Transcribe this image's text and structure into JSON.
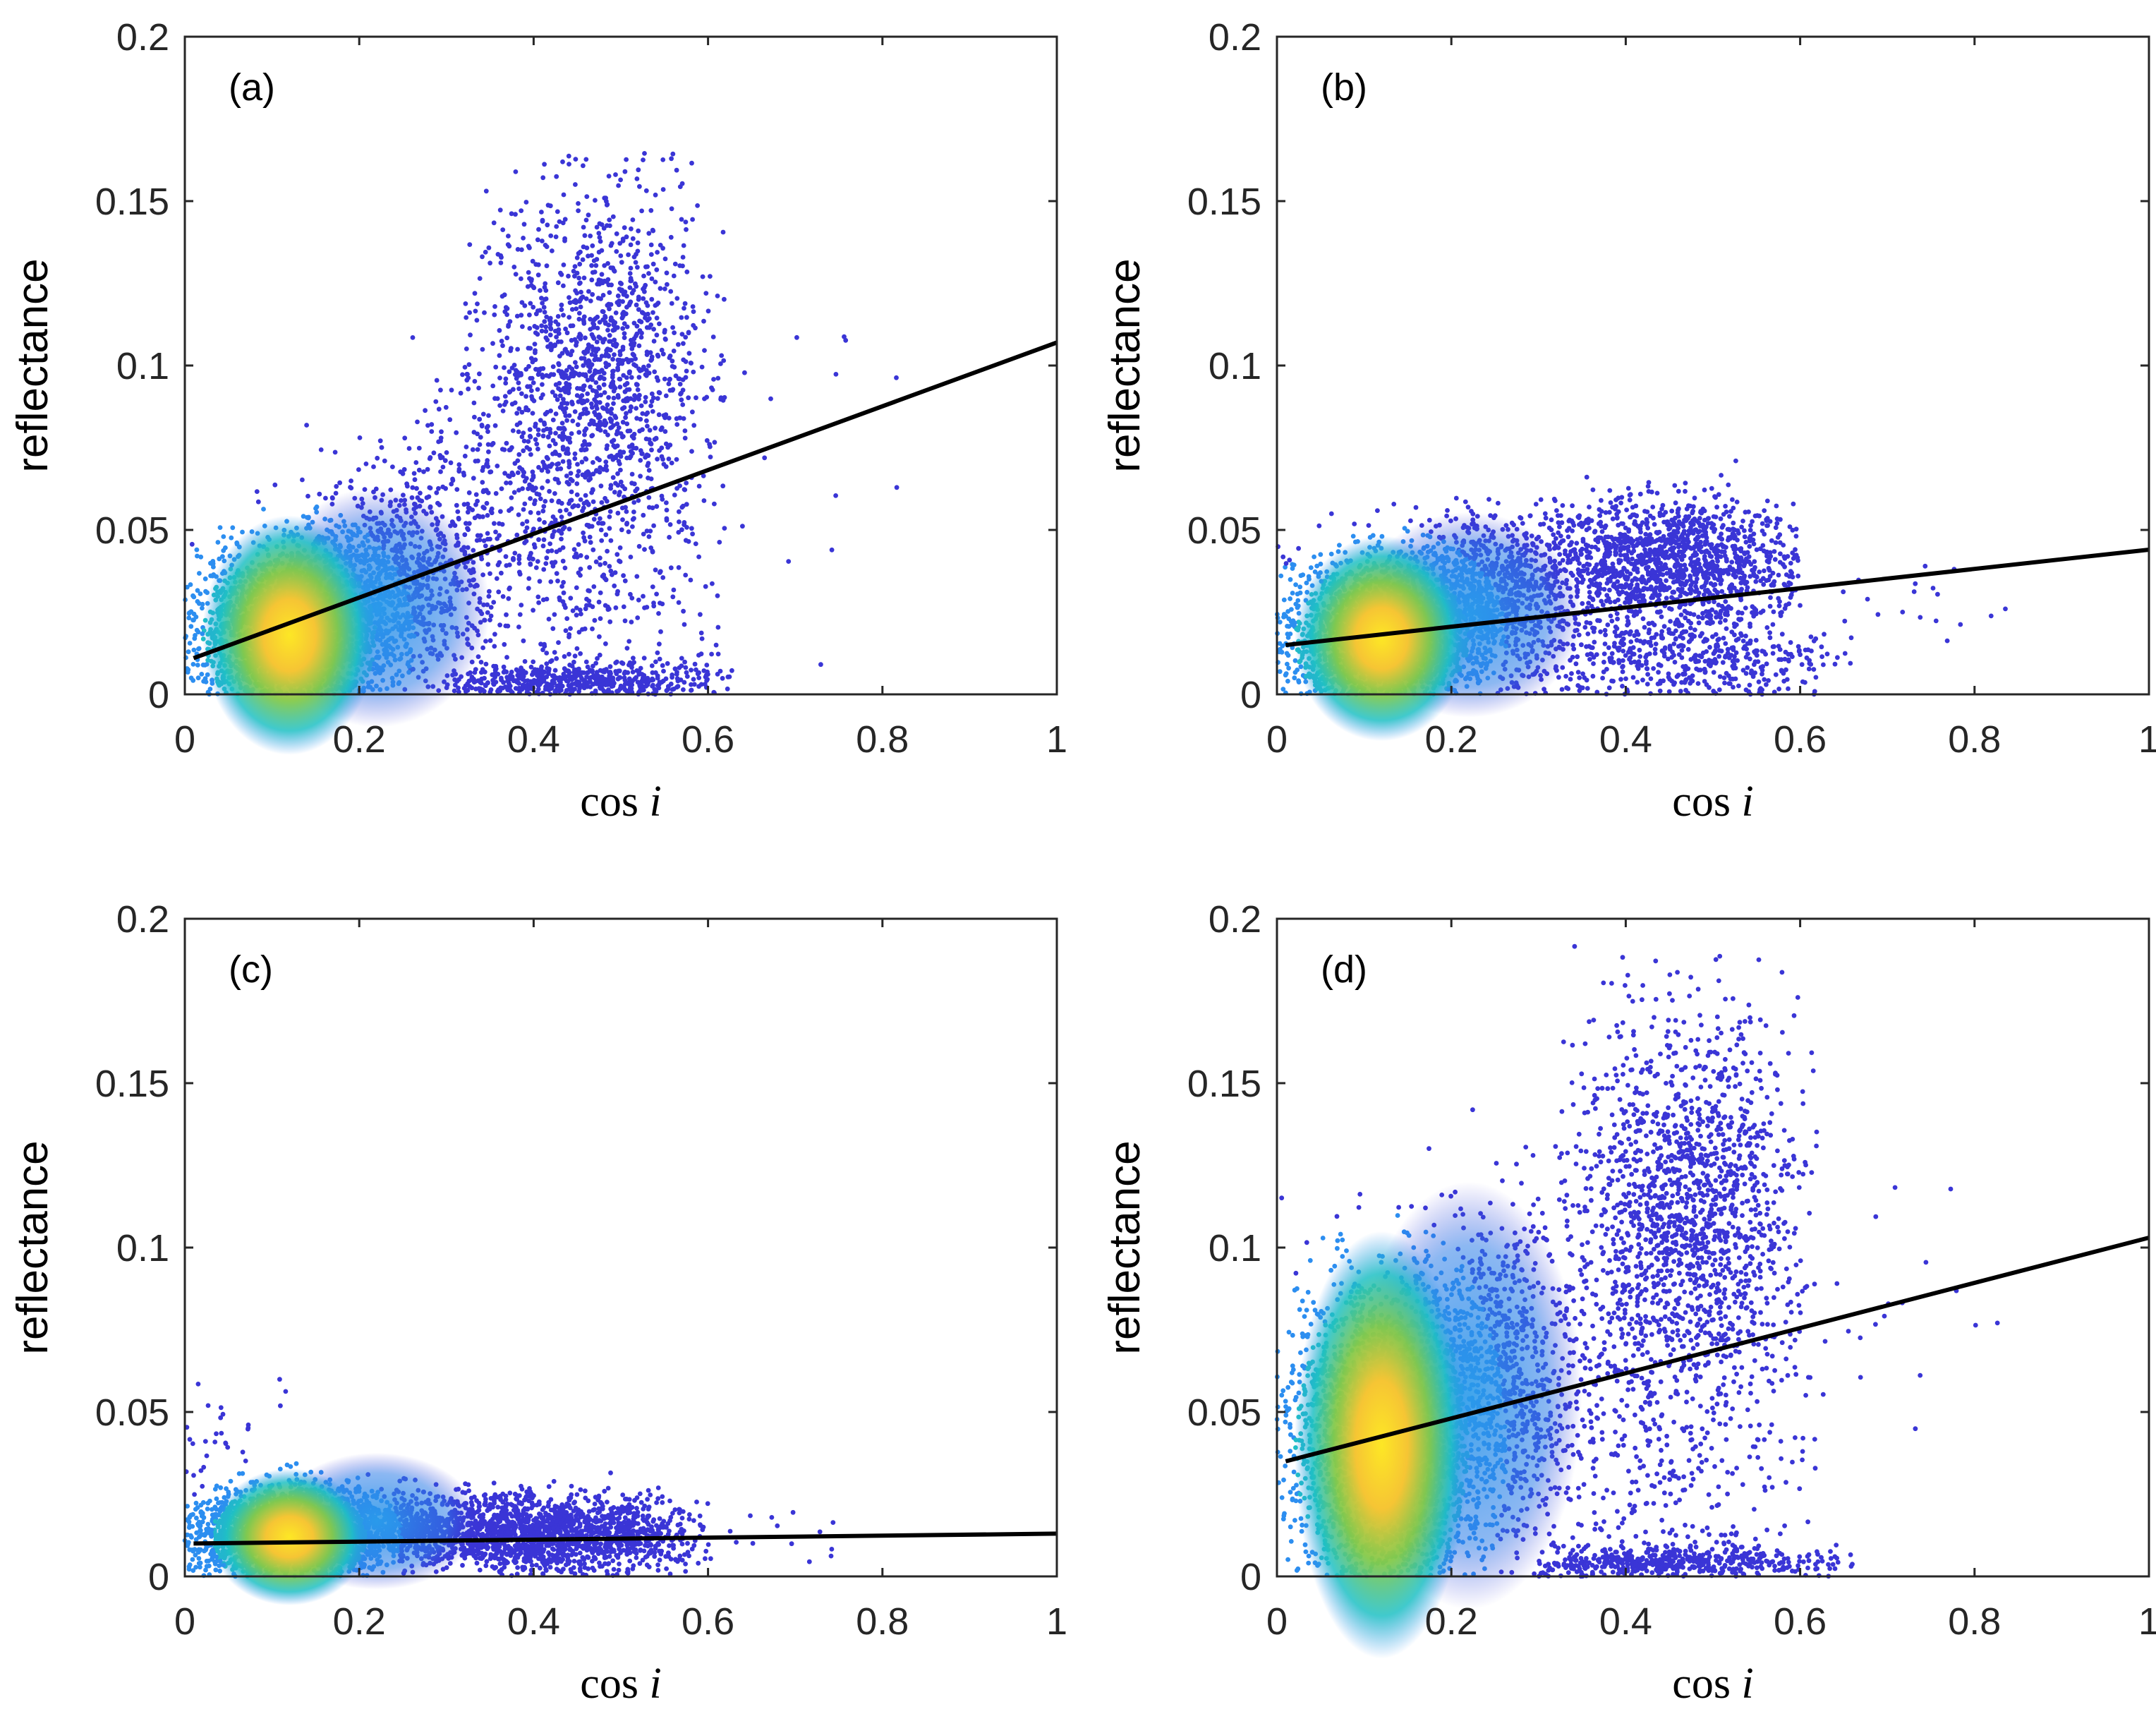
{
  "figure": {
    "panels": [
      "a",
      "b",
      "c",
      "d"
    ]
  },
  "chart_data": [
    {
      "type": "scatter",
      "panel_label": "(a)",
      "xlabel_main": "cos",
      "xlabel_var": "i",
      "ylabel": "reflectance",
      "xlim": [
        0,
        1
      ],
      "ylim": [
        0,
        0.2
      ],
      "xticks": [
        0,
        0.2,
        0.4,
        0.6,
        0.8,
        1
      ],
      "xtick_labels": [
        "0",
        "0.2",
        "0.4",
        "0.6",
        "0.8",
        "1"
      ],
      "yticks": [
        0,
        0.05,
        0.1,
        0.15,
        0.2
      ],
      "ytick_labels": [
        "0",
        "0.05",
        "0.1",
        "0.15",
        "0.2"
      ],
      "fit_line": {
        "x": [
          0.01,
          1.0
        ],
        "y": [
          0.011,
          0.107
        ]
      },
      "density_core": {
        "cx": 0.12,
        "cy": 0.018,
        "sx": 0.05,
        "sy": 0.014
      },
      "clusters": [
        {
          "n": 2600,
          "cx": 0.12,
          "cy": 0.018,
          "sx": 0.055,
          "sy": 0.014,
          "xmin": 0.0,
          "xmax": 0.3,
          "ymin": 0,
          "ymax": 0.08
        },
        {
          "n": 900,
          "cx": 0.24,
          "cy": 0.035,
          "sx": 0.05,
          "sy": 0.016,
          "xmin": 0.05,
          "xmax": 0.35,
          "ymin": 0,
          "ymax": 0.09
        },
        {
          "n": 1300,
          "cx": 0.47,
          "cy": 0.1,
          "sx": 0.065,
          "sy": 0.027,
          "xmin": 0.32,
          "xmax": 0.62,
          "ymin": 0.04,
          "ymax": 0.166
        },
        {
          "n": 800,
          "cx": 0.42,
          "cy": 0.045,
          "sx": 0.11,
          "sy": 0.03,
          "xmin": 0.25,
          "xmax": 0.62,
          "ymin": 0,
          "ymax": 0.15
        },
        {
          "n": 600,
          "cx": 0.45,
          "cy": 0.004,
          "sx": 0.09,
          "sy": 0.003,
          "xmin": 0.3,
          "xmax": 0.63,
          "ymin": 0,
          "ymax": 0.01
        },
        {
          "n": 25,
          "cx": 0.7,
          "cy": 0.08,
          "sx": 0.08,
          "sy": 0.03,
          "xmin": 0.62,
          "xmax": 0.85,
          "ymin": 0.0,
          "ymax": 0.11
        }
      ]
    },
    {
      "type": "scatter",
      "panel_label": "(b)",
      "xlabel_main": "cos",
      "xlabel_var": "i",
      "ylabel": "reflectance",
      "xlim": [
        0,
        1
      ],
      "ylim": [
        0,
        0.2
      ],
      "xticks": [
        0,
        0.2,
        0.4,
        0.6,
        0.8,
        1
      ],
      "xtick_labels": [
        "0",
        "0.2",
        "0.4",
        "0.6",
        "0.8",
        "1"
      ],
      "yticks": [
        0,
        0.05,
        0.1,
        0.15,
        0.2
      ],
      "ytick_labels": [
        "0",
        "0.05",
        "0.1",
        "0.15",
        "0.2"
      ],
      "fit_line": {
        "x": [
          0.01,
          1.0
        ],
        "y": [
          0.015,
          0.044
        ]
      },
      "density_core": {
        "cx": 0.12,
        "cy": 0.017,
        "sx": 0.05,
        "sy": 0.012
      },
      "clusters": [
        {
          "n": 2600,
          "cx": 0.12,
          "cy": 0.017,
          "sx": 0.055,
          "sy": 0.012,
          "xmin": 0.0,
          "xmax": 0.3,
          "ymin": 0,
          "ymax": 0.065
        },
        {
          "n": 900,
          "cx": 0.24,
          "cy": 0.032,
          "sx": 0.05,
          "sy": 0.012,
          "xmin": 0.05,
          "xmax": 0.35,
          "ymin": 0,
          "ymax": 0.06
        },
        {
          "n": 1500,
          "cx": 0.45,
          "cy": 0.04,
          "sx": 0.08,
          "sy": 0.01,
          "xmin": 0.3,
          "xmax": 0.6,
          "ymin": 0.01,
          "ymax": 0.075
        },
        {
          "n": 600,
          "cx": 0.45,
          "cy": 0.01,
          "sx": 0.1,
          "sy": 0.008,
          "xmin": 0.25,
          "xmax": 0.66,
          "ymin": 0,
          "ymax": 0.03
        },
        {
          "n": 20,
          "cx": 0.72,
          "cy": 0.03,
          "sx": 0.06,
          "sy": 0.01,
          "xmin": 0.62,
          "xmax": 0.85,
          "ymin": 0.0,
          "ymax": 0.045
        }
      ]
    },
    {
      "type": "scatter",
      "panel_label": "(c)",
      "xlabel_main": "cos",
      "xlabel_var": "i",
      "ylabel": "reflectance",
      "xlim": [
        0,
        1
      ],
      "ylim": [
        0,
        0.2
      ],
      "xticks": [
        0,
        0.2,
        0.4,
        0.6,
        0.8,
        1
      ],
      "xtick_labels": [
        "0",
        "0.2",
        "0.4",
        "0.6",
        "0.8",
        "1"
      ],
      "yticks": [
        0,
        0.05,
        0.1,
        0.15,
        0.2
      ],
      "ytick_labels": [
        "0",
        "0.05",
        "0.1",
        "0.15",
        "0.2"
      ],
      "fit_line": {
        "x": [
          0.01,
          1.0
        ],
        "y": [
          0.01,
          0.013
        ]
      },
      "density_core": {
        "cx": 0.12,
        "cy": 0.012,
        "sx": 0.045,
        "sy": 0.008
      },
      "clusters": [
        {
          "n": 2600,
          "cx": 0.12,
          "cy": 0.013,
          "sx": 0.06,
          "sy": 0.007,
          "xmin": 0.0,
          "xmax": 0.3,
          "ymin": 0,
          "ymax": 0.035
        },
        {
          "n": 1100,
          "cx": 0.3,
          "cy": 0.014,
          "sx": 0.08,
          "sy": 0.006,
          "xmin": 0.15,
          "xmax": 0.45,
          "ymin": 0,
          "ymax": 0.03
        },
        {
          "n": 1200,
          "cx": 0.45,
          "cy": 0.013,
          "sx": 0.07,
          "sy": 0.006,
          "xmin": 0.3,
          "xmax": 0.6,
          "ymin": 0,
          "ymax": 0.032
        },
        {
          "n": 30,
          "cx": 0.05,
          "cy": 0.04,
          "sx": 0.03,
          "sy": 0.012,
          "xmin": 0.0,
          "xmax": 0.12,
          "ymin": 0.03,
          "ymax": 0.075
        },
        {
          "n": 20,
          "cx": 0.67,
          "cy": 0.012,
          "sx": 0.05,
          "sy": 0.004,
          "xmin": 0.6,
          "xmax": 0.76,
          "ymin": 0.004,
          "ymax": 0.02
        }
      ]
    },
    {
      "type": "scatter",
      "panel_label": "(d)",
      "xlabel_main": "cos",
      "xlabel_var": "i",
      "ylabel": "reflectance",
      "xlim": [
        0,
        1
      ],
      "ylim": [
        0,
        0.2
      ],
      "xticks": [
        0,
        0.2,
        0.4,
        0.6,
        0.8,
        1
      ],
      "xtick_labels": [
        "0",
        "0.2",
        "0.4",
        "0.6",
        "0.8",
        "1"
      ],
      "yticks": [
        0,
        0.05,
        0.1,
        0.15,
        0.2
      ],
      "ytick_labels": [
        "0",
        "0.05",
        "0.1",
        "0.15",
        "0.2"
      ],
      "fit_line": {
        "x": [
          0.01,
          1.0
        ],
        "y": [
          0.035,
          0.103
        ]
      },
      "density_core": {
        "cx": 0.12,
        "cy": 0.04,
        "sx": 0.05,
        "sy": 0.025
      },
      "clusters": [
        {
          "n": 2600,
          "cx": 0.12,
          "cy": 0.04,
          "sx": 0.055,
          "sy": 0.025,
          "xmin": 0.0,
          "xmax": 0.3,
          "ymin": 0,
          "ymax": 0.2
        },
        {
          "n": 900,
          "cx": 0.24,
          "cy": 0.06,
          "sx": 0.05,
          "sy": 0.025,
          "xmin": 0.05,
          "xmax": 0.35,
          "ymin": 0,
          "ymax": 0.16
        },
        {
          "n": 1400,
          "cx": 0.47,
          "cy": 0.115,
          "sx": 0.065,
          "sy": 0.028,
          "xmin": 0.32,
          "xmax": 0.62,
          "ymin": 0.05,
          "ymax": 0.192
        },
        {
          "n": 800,
          "cx": 0.42,
          "cy": 0.05,
          "sx": 0.11,
          "sy": 0.035,
          "xmin": 0.25,
          "xmax": 0.62,
          "ymin": 0,
          "ymax": 0.17
        },
        {
          "n": 600,
          "cx": 0.45,
          "cy": 0.004,
          "sx": 0.1,
          "sy": 0.003,
          "xmin": 0.3,
          "xmax": 0.66,
          "ymin": 0,
          "ymax": 0.01
        },
        {
          "n": 25,
          "cx": 0.72,
          "cy": 0.08,
          "sx": 0.07,
          "sy": 0.03,
          "xmin": 0.62,
          "xmax": 0.85,
          "ymin": 0.0,
          "ymax": 0.12
        }
      ]
    }
  ],
  "colors": {
    "scatter_outer": "#3a35d6",
    "scatter_mid": "#2c8ef0",
    "scatter_teal": "#1fc0c4",
    "scatter_green": "#84c94a",
    "scatter_yellow": "#fde725",
    "fit_line": "#000000",
    "axes": "#262626"
  }
}
